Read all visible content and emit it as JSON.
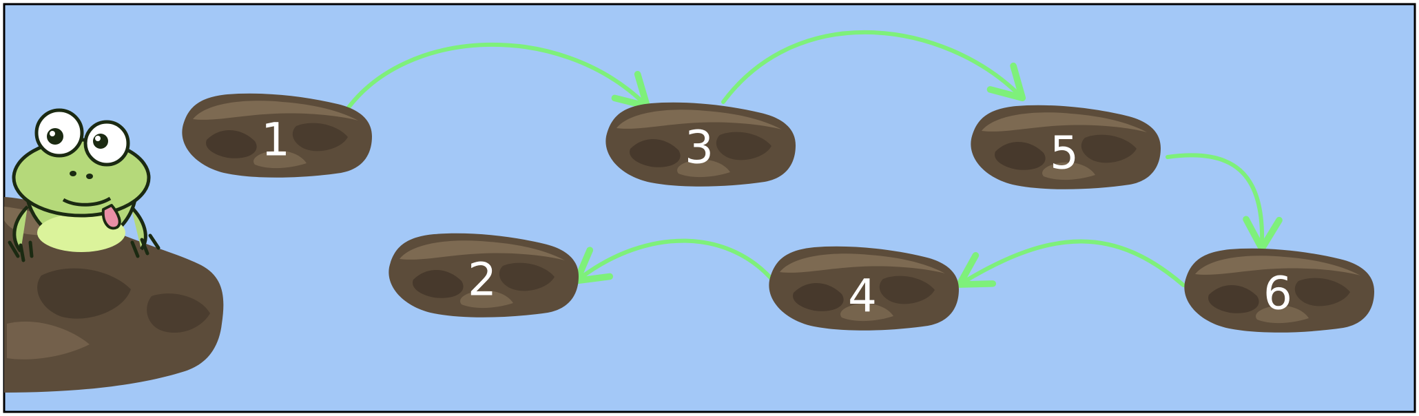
{
  "colors": {
    "water": "#a3c8f7",
    "frame": "#000000",
    "arrow": "#7ef07a",
    "rock": "#5c4c3a",
    "rock_dark": "#3e3226",
    "rock_light": "#7d6a52",
    "frog_body": "#b5d97a",
    "frog_belly": "#dbf39b",
    "frog_outline": "#1b2a12",
    "tongue": "#e98fa6",
    "label": "#ffffff"
  },
  "icons": [
    "frog-icon",
    "rock-icon",
    "arrow-icon"
  ],
  "stones": [
    {
      "label": "1"
    },
    {
      "label": "2"
    },
    {
      "label": "3"
    },
    {
      "label": "4"
    },
    {
      "label": "5"
    },
    {
      "label": "6"
    }
  ],
  "jumps": [
    {
      "from": "1",
      "to": "3"
    },
    {
      "from": "3",
      "to": "5"
    },
    {
      "from": "5",
      "to": "6"
    },
    {
      "from": "6",
      "to": "4"
    },
    {
      "from": "4",
      "to": "2"
    }
  ]
}
